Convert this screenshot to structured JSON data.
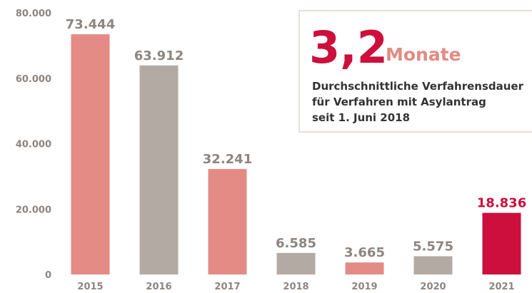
{
  "chart_data": {
    "type": "bar",
    "categories": [
      "2015",
      "2016",
      "2017",
      "2018",
      "2019",
      "2020",
      "2021"
    ],
    "values": [
      73444,
      63912,
      32241,
      6585,
      3665,
      5575,
      18836
    ],
    "value_labels": [
      "73.444",
      "63.912",
      "32.241",
      "6.585",
      "3.665",
      "5.575",
      "18.836"
    ],
    "colors": [
      "#e38b84",
      "#b3aaa3",
      "#e38b84",
      "#b3aaa3",
      "#e38b84",
      "#b3aaa3",
      "#cc0f3c"
    ],
    "value_label_colors": [
      "#8d8580",
      "#8d8580",
      "#8d8580",
      "#8d8580",
      "#8d8580",
      "#8d8580",
      "#cc0f3c"
    ],
    "ylim": [
      0,
      80000
    ],
    "yticks": [
      0,
      {
        "value": 20000,
        "label": "20.000"
      },
      {
        "value": 40000,
        "label": "40.000"
      },
      {
        "value": 60000,
        "label": "60.000"
      },
      {
        "value": 80000,
        "label": "80.000"
      }
    ],
    "grid": false,
    "annotation": {
      "figure": "3,2",
      "unit": "Monate",
      "lines": [
        "Durchschnittliche Verfahrensdauer",
        "für Verfahren mit Asylantrag",
        "seit 1. Juni 2018"
      ]
    }
  }
}
